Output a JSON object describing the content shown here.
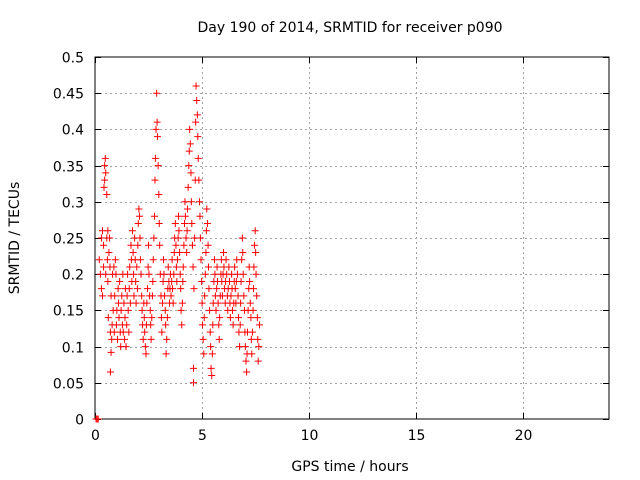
{
  "chart_data": {
    "type": "scatter",
    "title": "Day 190 of 2014, SRMTID for receiver p090",
    "xlabel": "GPS time / hours",
    "ylabel": "SRMTID / TECUs",
    "xlim": [
      0,
      24
    ],
    "ylim": [
      0,
      0.5
    ],
    "x_ticks": [
      0,
      5,
      10,
      15,
      20
    ],
    "x_tick_labels": [
      "0",
      "5",
      "10",
      "15",
      "20"
    ],
    "y_ticks": [
      0,
      0.05,
      0.1,
      0.15,
      0.2,
      0.25,
      0.3,
      0.35,
      0.4,
      0.45,
      0.5
    ],
    "y_tick_labels": [
      "0",
      "0.05",
      "0.1",
      "0.15",
      "0.2",
      "0.25",
      "0.3",
      "0.35",
      "0.4",
      "0.45",
      "0.5"
    ],
    "grid": true,
    "marker": "+",
    "color": "#ff0000",
    "series": [
      {
        "name": "SRMTID",
        "points": [
          [
            0.05,
            0.0
          ],
          [
            0.1,
            0.0
          ],
          [
            0.15,
            0.0
          ],
          [
            0.2,
            0.22
          ],
          [
            0.25,
            0.2
          ],
          [
            0.3,
            0.18
          ],
          [
            0.3,
            0.25
          ],
          [
            0.35,
            0.17
          ],
          [
            0.35,
            0.26
          ],
          [
            0.4,
            0.21
          ],
          [
            0.4,
            0.24
          ],
          [
            0.42,
            0.32
          ],
          [
            0.45,
            0.33
          ],
          [
            0.45,
            0.35
          ],
          [
            0.48,
            0.36
          ],
          [
            0.5,
            0.2
          ],
          [
            0.5,
            0.34
          ],
          [
            0.55,
            0.25
          ],
          [
            0.55,
            0.31
          ],
          [
            0.58,
            0.22
          ],
          [
            0.6,
            0.19
          ],
          [
            0.6,
            0.26
          ],
          [
            0.62,
            0.14
          ],
          [
            0.65,
            0.23
          ],
          [
            0.68,
            0.25
          ],
          [
            0.7,
            0.21
          ],
          [
            0.72,
            0.12
          ],
          [
            0.72,
            0.065
          ],
          [
            0.75,
            0.17
          ],
          [
            0.75,
            0.092
          ],
          [
            0.78,
            0.11
          ],
          [
            0.8,
            0.13
          ],
          [
            0.82,
            0.2
          ],
          [
            0.85,
            0.15
          ],
          [
            0.88,
            0.21
          ],
          [
            0.9,
            0.12
          ],
          [
            0.92,
            0.17
          ],
          [
            0.95,
            0.22
          ],
          [
            0.98,
            0.2
          ],
          [
            1.0,
            0.13
          ],
          [
            1.02,
            0.15
          ],
          [
            1.05,
            0.11
          ],
          [
            1.08,
            0.18
          ],
          [
            1.1,
            0.16
          ],
          [
            1.12,
            0.14
          ],
          [
            1.15,
            0.19
          ],
          [
            1.18,
            0.12
          ],
          [
            1.2,
            0.1
          ],
          [
            1.22,
            0.15
          ],
          [
            1.25,
            0.17
          ],
          [
            1.28,
            0.13
          ],
          [
            1.3,
            0.2
          ],
          [
            1.32,
            0.12
          ],
          [
            1.35,
            0.16
          ],
          [
            1.38,
            0.11
          ],
          [
            1.4,
            0.14
          ],
          [
            1.42,
            0.18
          ],
          [
            1.45,
            0.1
          ],
          [
            1.48,
            0.13
          ],
          [
            1.5,
            0.17
          ],
          [
            1.52,
            0.2
          ],
          [
            1.55,
            0.15
          ],
          [
            1.58,
            0.12
          ],
          [
            1.6,
            0.18
          ],
          [
            1.62,
            0.21
          ],
          [
            1.65,
            0.16
          ],
          [
            1.68,
            0.24
          ],
          [
            1.7,
            0.22
          ],
          [
            1.72,
            0.19
          ],
          [
            1.75,
            0.26
          ],
          [
            1.78,
            0.23
          ],
          [
            1.8,
            0.2
          ],
          [
            1.82,
            0.17
          ],
          [
            1.85,
            0.25
          ],
          [
            1.88,
            0.22
          ],
          [
            1.9,
            0.19
          ],
          [
            1.92,
            0.16
          ],
          [
            1.95,
            0.21
          ],
          [
            1.98,
            0.18
          ],
          [
            2.0,
            0.24
          ],
          [
            2.02,
            0.27
          ],
          [
            2.05,
            0.29
          ],
          [
            2.08,
            0.28
          ],
          [
            2.1,
            0.25
          ],
          [
            2.12,
            0.22
          ],
          [
            2.15,
            0.2
          ],
          [
            2.18,
            0.17
          ],
          [
            2.2,
            0.15
          ],
          [
            2.22,
            0.13
          ],
          [
            2.25,
            0.11
          ],
          [
            2.28,
            0.16
          ],
          [
            2.3,
            0.14
          ],
          [
            2.32,
            0.12
          ],
          [
            2.35,
            0.1
          ],
          [
            2.38,
            0.09
          ],
          [
            2.4,
            0.13
          ],
          [
            2.42,
            0.16
          ],
          [
            2.45,
            0.18
          ],
          [
            2.48,
            0.21
          ],
          [
            2.5,
            0.24
          ],
          [
            2.52,
            0.2
          ],
          [
            2.55,
            0.17
          ],
          [
            2.58,
            0.15
          ],
          [
            2.6,
            0.13
          ],
          [
            2.62,
            0.11
          ],
          [
            2.65,
            0.14
          ],
          [
            2.68,
            0.17
          ],
          [
            2.7,
            0.19
          ],
          [
            2.72,
            0.22
          ],
          [
            2.75,
            0.25
          ],
          [
            2.78,
            0.28
          ],
          [
            2.8,
            0.33
          ],
          [
            2.82,
            0.36
          ],
          [
            2.85,
            0.4
          ],
          [
            2.88,
            0.45
          ],
          [
            2.9,
            0.41
          ],
          [
            2.92,
            0.39
          ],
          [
            2.95,
            0.35
          ],
          [
            2.98,
            0.31
          ],
          [
            3.0,
            0.27
          ],
          [
            3.02,
            0.24
          ],
          [
            3.05,
            0.2
          ],
          [
            3.08,
            0.17
          ],
          [
            3.1,
            0.14
          ],
          [
            3.12,
            0.12
          ],
          [
            3.15,
            0.16
          ],
          [
            3.18,
            0.19
          ],
          [
            3.2,
            0.22
          ],
          [
            3.22,
            0.2
          ],
          [
            3.25,
            0.17
          ],
          [
            3.28,
            0.15
          ],
          [
            3.3,
            0.13
          ],
          [
            3.32,
            0.09
          ],
          [
            3.35,
            0.11
          ],
          [
            3.38,
            0.14
          ],
          [
            3.4,
            0.18
          ],
          [
            3.42,
            0.21
          ],
          [
            3.45,
            0.19
          ],
          [
            3.48,
            0.16
          ],
          [
            3.5,
            0.18
          ],
          [
            3.52,
            0.2
          ],
          [
            3.55,
            0.17
          ],
          [
            3.58,
            0.19
          ],
          [
            3.6,
            0.22
          ],
          [
            3.62,
            0.18
          ],
          [
            3.65,
            0.16
          ],
          [
            3.68,
            0.2
          ],
          [
            3.7,
            0.23
          ],
          [
            3.72,
            0.25
          ],
          [
            3.75,
            0.27
          ],
          [
            3.78,
            0.24
          ],
          [
            3.8,
            0.21
          ],
          [
            3.82,
            0.19
          ],
          [
            3.85,
            0.22
          ],
          [
            3.88,
            0.25
          ],
          [
            3.9,
            0.28
          ],
          [
            3.92,
            0.26
          ],
          [
            3.95,
            0.23
          ],
          [
            3.98,
            0.2
          ],
          [
            4.0,
            0.18
          ],
          [
            4.02,
            0.15
          ],
          [
            4.05,
            0.13
          ],
          [
            4.08,
            0.16
          ],
          [
            4.1,
            0.19
          ],
          [
            4.12,
            0.21
          ],
          [
            4.15,
            0.24
          ],
          [
            4.18,
            0.27
          ],
          [
            4.2,
            0.3
          ],
          [
            4.22,
            0.28
          ],
          [
            4.25,
            0.25
          ],
          [
            4.28,
            0.23
          ],
          [
            4.3,
            0.26
          ],
          [
            4.32,
            0.29
          ],
          [
            4.35,
            0.32
          ],
          [
            4.38,
            0.35
          ],
          [
            4.4,
            0.37
          ],
          [
            4.42,
            0.4
          ],
          [
            4.45,
            0.38
          ],
          [
            4.48,
            0.34
          ],
          [
            4.5,
            0.3
          ],
          [
            4.52,
            0.27
          ],
          [
            4.55,
            0.24
          ],
          [
            4.58,
            0.21
          ],
          [
            4.6,
            0.07
          ],
          [
            4.6,
            0.05
          ],
          [
            4.62,
            0.18
          ],
          [
            4.65,
            0.25
          ],
          [
            4.68,
            0.33
          ],
          [
            4.7,
            0.41
          ],
          [
            4.72,
            0.46
          ],
          [
            4.75,
            0.44
          ],
          [
            4.78,
            0.42
          ],
          [
            4.8,
            0.39
          ],
          [
            4.82,
            0.36
          ],
          [
            4.85,
            0.33
          ],
          [
            4.88,
            0.3
          ],
          [
            4.9,
            0.28
          ],
          [
            4.92,
            0.25
          ],
          [
            4.95,
            0.22
          ],
          [
            4.98,
            0.19
          ],
          [
            5.0,
            0.16
          ],
          [
            5.02,
            0.13
          ],
          [
            5.05,
            0.11
          ],
          [
            5.08,
            0.09
          ],
          [
            5.1,
            0.14
          ],
          [
            5.12,
            0.17
          ],
          [
            5.15,
            0.2
          ],
          [
            5.18,
            0.23
          ],
          [
            5.2,
            0.26
          ],
          [
            5.22,
            0.29
          ],
          [
            5.25,
            0.27
          ],
          [
            5.28,
            0.24
          ],
          [
            5.3,
            0.21
          ],
          [
            5.32,
            0.18
          ],
          [
            5.35,
            0.15
          ],
          [
            5.38,
            0.12
          ],
          [
            5.4,
            0.1
          ],
          [
            5.42,
            0.07
          ],
          [
            5.45,
            0.06
          ],
          [
            5.48,
            0.09
          ],
          [
            5.5,
            0.13
          ],
          [
            5.52,
            0.16
          ],
          [
            5.55,
            0.19
          ],
          [
            5.58,
            0.22
          ],
          [
            5.6,
            0.2
          ],
          [
            5.62,
            0.17
          ],
          [
            5.65,
            0.15
          ],
          [
            5.68,
            0.18
          ],
          [
            5.7,
            0.21
          ],
          [
            5.72,
            0.19
          ],
          [
            5.75,
            0.16
          ],
          [
            5.78,
            0.13
          ],
          [
            5.8,
            0.11
          ],
          [
            5.82,
            0.14
          ],
          [
            5.85,
            0.17
          ],
          [
            5.88,
            0.2
          ],
          [
            5.9,
            0.22
          ],
          [
            5.92,
            0.19
          ],
          [
            5.95,
            0.17
          ],
          [
            5.98,
            0.2
          ],
          [
            6.0,
            0.23
          ],
          [
            6.02,
            0.21
          ],
          [
            6.05,
            0.18
          ],
          [
            6.08,
            0.16
          ],
          [
            6.1,
            0.19
          ],
          [
            6.12,
            0.22
          ],
          [
            6.15,
            0.2
          ],
          [
            6.18,
            0.17
          ],
          [
            6.2,
            0.15
          ],
          [
            6.22,
            0.18
          ],
          [
            6.25,
            0.21
          ],
          [
            6.28,
            0.19
          ],
          [
            6.3,
            0.16
          ],
          [
            6.32,
            0.14
          ],
          [
            6.35,
            0.17
          ],
          [
            6.38,
            0.2
          ],
          [
            6.4,
            0.18
          ],
          [
            6.42,
            0.15
          ],
          [
            6.45,
            0.13
          ],
          [
            6.48,
            0.16
          ],
          [
            6.5,
            0.19
          ],
          [
            6.52,
            0.21
          ],
          [
            6.55,
            0.18
          ],
          [
            6.58,
            0.16
          ],
          [
            6.6,
            0.19
          ],
          [
            6.62,
            0.22
          ],
          [
            6.65,
            0.2
          ],
          [
            6.68,
            0.17
          ],
          [
            6.7,
            0.14
          ],
          [
            6.72,
            0.12
          ],
          [
            6.75,
            0.1
          ],
          [
            6.78,
            0.13
          ],
          [
            6.8,
            0.16
          ],
          [
            6.82,
            0.19
          ],
          [
            6.85,
            0.22
          ],
          [
            6.88,
            0.25
          ],
          [
            6.9,
            0.23
          ],
          [
            6.92,
            0.2
          ],
          [
            6.95,
            0.17
          ],
          [
            6.98,
            0.15
          ],
          [
            7.0,
            0.12
          ],
          [
            7.02,
            0.1
          ],
          [
            7.05,
            0.08
          ],
          [
            7.08,
            0.065
          ],
          [
            7.1,
            0.09
          ],
          [
            7.12,
            0.12
          ],
          [
            7.15,
            0.15
          ],
          [
            7.18,
            0.18
          ],
          [
            7.2,
            0.21
          ],
          [
            7.22,
            0.19
          ],
          [
            7.25,
            0.16
          ],
          [
            7.28,
            0.14
          ],
          [
            7.3,
            0.11
          ],
          [
            7.32,
            0.09
          ],
          [
            7.35,
            0.12
          ],
          [
            7.38,
            0.15
          ],
          [
            7.4,
            0.18
          ],
          [
            7.42,
            0.21
          ],
          [
            7.45,
            0.24
          ],
          [
            7.48,
            0.26
          ],
          [
            7.5,
            0.23
          ],
          [
            7.52,
            0.2
          ],
          [
            7.55,
            0.17
          ],
          [
            7.58,
            0.14
          ],
          [
            7.6,
            0.11
          ],
          [
            7.62,
            0.08
          ],
          [
            7.65,
            0.1
          ],
          [
            7.68,
            0.13
          ]
        ]
      }
    ]
  }
}
